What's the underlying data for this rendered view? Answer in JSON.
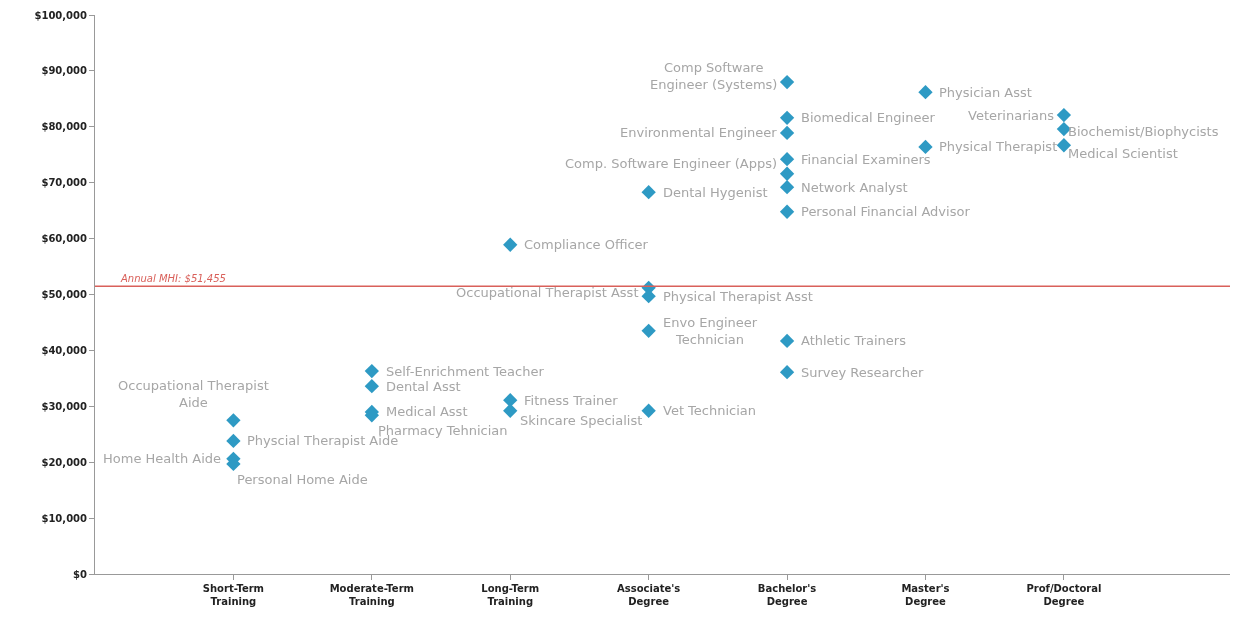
{
  "chart_data": {
    "type": "scatter",
    "marker": "diamond",
    "categories": [
      "Short-Term Training",
      "Moderate-Term Training",
      "Long-Term Training",
      "Associate's Degree",
      "Bachelor's Degree",
      "Master's Degree",
      "Prof/Doctoral Degree"
    ],
    "series": [
      {
        "color": "#2e9ac4",
        "x": [
          "Short-Term Training",
          "Short-Term Training",
          "Short-Term Training",
          "Short-Term Training",
          "Moderate-Term Training",
          "Moderate-Term Training",
          "Moderate-Term Training",
          "Moderate-Term Training",
          "Long-Term Training",
          "Long-Term Training",
          "Long-Term Training",
          "Associate's Degree",
          "Associate's Degree",
          "Associate's Degree",
          "Associate's Degree",
          "Associate's Degree",
          "Bachelor's Degree",
          "Bachelor's Degree",
          "Bachelor's Degree",
          "Bachelor's Degree",
          "Bachelor's Degree",
          "Bachelor's Degree",
          "Bachelor's Degree",
          "Bachelor's Degree",
          "Bachelor's Degree",
          "Master's Degree",
          "Master's Degree",
          "Prof/Doctoral Degree",
          "Prof/Doctoral Degree",
          "Prof/Doctoral Degree"
        ],
        "values": [
          27500,
          23800,
          20600,
          19700,
          36300,
          33600,
          29000,
          28400,
          58900,
          31100,
          29200,
          68300,
          51200,
          49700,
          43500,
          29200,
          88000,
          81600,
          78900,
          74200,
          71600,
          69200,
          64800,
          41700,
          36100,
          86200,
          76400,
          82100,
          79600,
          76700
        ]
      }
    ],
    "ylim": [
      0,
      100000
    ],
    "yticks": [
      {
        "value": 0,
        "label": "$0"
      },
      {
        "value": 10000,
        "label": "$10,000"
      },
      {
        "value": 20000,
        "label": "$20,000"
      },
      {
        "value": 30000,
        "label": "$30,000"
      },
      {
        "value": 40000,
        "label": "$40,000"
      },
      {
        "value": 50000,
        "label": "$50,000"
      },
      {
        "value": 60000,
        "label": "$60,000"
      },
      {
        "value": 70000,
        "label": "$70,000"
      },
      {
        "value": 80000,
        "label": "$80,000"
      },
      {
        "value": 90000,
        "label": "$90,000"
      },
      {
        "value": 100000,
        "label": "$100,000"
      }
    ],
    "ref_lines": [
      {
        "axis": "y",
        "value": 51455,
        "label": "Annual MHI: $51,455",
        "color": "#d9605a"
      }
    ],
    "annotations": [
      {
        "text": "Occupational Therapist\nAide",
        "x": "Short-Term Training",
        "y": 27500
      },
      {
        "text": "Physcial Therapist Aide",
        "x": "Short-Term Training",
        "y": 23800
      },
      {
        "text": "Home Health Aide",
        "x": "Short-Term Training",
        "y": 20600
      },
      {
        "text": "Personal Home Aide",
        "x": "Short-Term Training",
        "y": 19700
      },
      {
        "text": "Self-Enrichment Teacher",
        "x": "Moderate-Term Training",
        "y": 36300
      },
      {
        "text": "Dental Asst",
        "x": "Moderate-Term Training",
        "y": 33600
      },
      {
        "text": "Medical Asst",
        "x": "Moderate-Term Training",
        "y": 29000
      },
      {
        "text": "Pharmacy Tehnician",
        "x": "Moderate-Term Training",
        "y": 28400
      },
      {
        "text": "Compliance Officer",
        "x": "Long-Term Training",
        "y": 58900
      },
      {
        "text": "Fitness Trainer",
        "x": "Long-Term Training",
        "y": 31100
      },
      {
        "text": "Skincare Specialist",
        "x": "Long-Term Training",
        "y": 29200
      },
      {
        "text": "Dental Hygenist",
        "x": "Associate's Degree",
        "y": 68300
      },
      {
        "text": "Occupational Therapist Asst",
        "x": "Associate's Degree",
        "y": 51200
      },
      {
        "text": "Physical Therapist Asst",
        "x": "Associate's Degree",
        "y": 49700
      },
      {
        "text": "Envo Engineer\nTechnician",
        "x": "Associate's Degree",
        "y": 43500
      },
      {
        "text": "Vet Technician",
        "x": "Associate's Degree",
        "y": 29200
      },
      {
        "text": "Comp Software\nEngineer (Systems)",
        "x": "Bachelor's Degree",
        "y": 88000
      },
      {
        "text": "Biomedical Engineer",
        "x": "Bachelor's Degree",
        "y": 81600
      },
      {
        "text": "Environmental Engineer",
        "x": "Bachelor's Degree",
        "y": 78900
      },
      {
        "text": "Financial Examiners",
        "x": "Bachelor's Degree",
        "y": 74200
      },
      {
        "text": "Comp. Software Engineer (Apps)",
        "x": "Bachelor's Degree",
        "y": 71600
      },
      {
        "text": "Network Analyst",
        "x": "Bachelor's Degree",
        "y": 69200
      },
      {
        "text": "Personal Financial Advisor",
        "x": "Bachelor's Degree",
        "y": 64800
      },
      {
        "text": "Athletic Trainers",
        "x": "Bachelor's Degree",
        "y": 41700
      },
      {
        "text": "Survey Researcher",
        "x": "Bachelor's Degree",
        "y": 36100
      },
      {
        "text": "Physician Asst",
        "x": "Master's Degree",
        "y": 86200
      },
      {
        "text": "Physical Therapist",
        "x": "Master's Degree",
        "y": 76400
      },
      {
        "text": "Veterinarians",
        "x": "Prof/Doctoral Degree",
        "y": 82100
      },
      {
        "text": "Biochemist/Biophycists",
        "x": "Prof/Doctoral Degree",
        "y": 79600
      },
      {
        "text": "Medical Scientist",
        "x": "Prof/Doctoral Degree",
        "y": 76700
      }
    ]
  }
}
